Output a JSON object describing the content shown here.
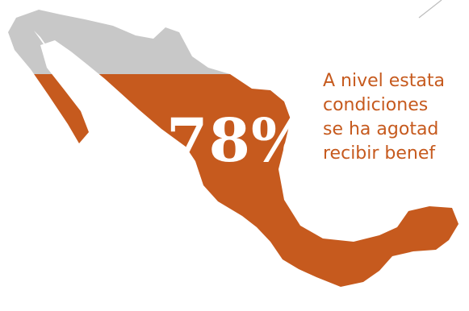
{
  "infographic": {
    "percent_label": "78%",
    "percent_value": 78,
    "caption_lines": [
      "A nivel estata",
      "condiciones",
      "se ha agotad",
      "recibir benef"
    ]
  },
  "colors": {
    "filled": "#c65a1e",
    "unfilled": "#c8c8c8",
    "percent_text": "#ffffff",
    "caption_text": "#c65a1e"
  },
  "icons": {
    "map": "mexico-map-icon",
    "divider": "diagonal-line"
  }
}
